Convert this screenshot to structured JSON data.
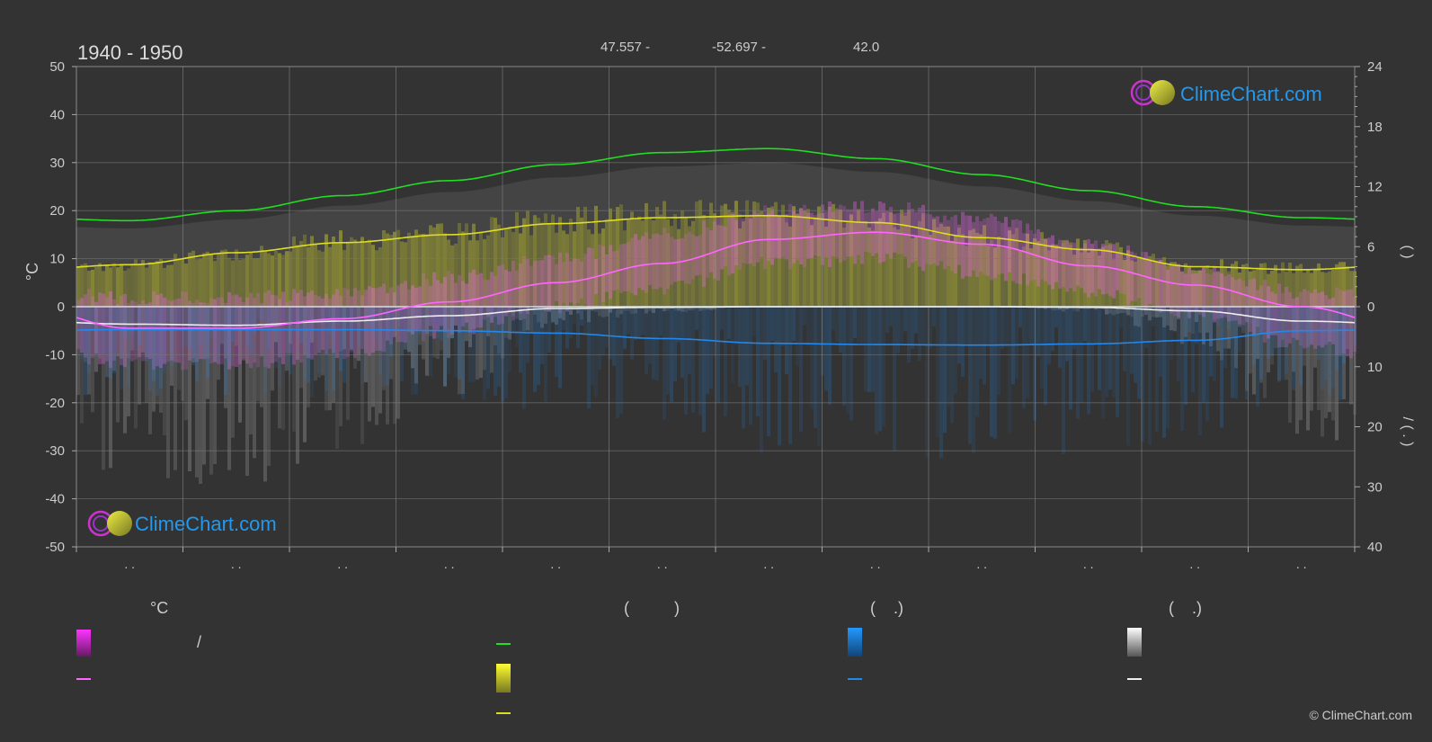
{
  "header": {
    "period": "1940 - 1950",
    "latitude_text": "47.557 -",
    "longitude_text": "-52.697 -",
    "elevation_text": "42.0"
  },
  "brand": {
    "name": "ClimeChart.com",
    "copyright": "© ClimeChart.com"
  },
  "colors": {
    "background": "#333333",
    "daylight": "#22dd22",
    "sunshine": "#dddd22",
    "temperature_mean": "#ff66ff",
    "precipitation": "#2288ee",
    "snow": "#eeeeee",
    "brand": "#2299ee"
  },
  "legend": {
    "temp_header": "°C",
    "sun_header": "(          )",
    "rain_header": "(    .)",
    "snow_header": "(    .)",
    "temp_range_label": "/"
  },
  "chart_data": {
    "type": "line",
    "x": [
      "Jan",
      "Feb",
      "Mar",
      "Apr",
      "May",
      "Jun",
      "Jul",
      "Aug",
      "Sep",
      "Oct",
      "Nov",
      "Dec"
    ],
    "x_tick_labels": [
      ". .",
      ". .",
      ". .",
      ". .",
      ". .",
      ". .",
      ". .",
      ". .",
      ". .",
      ". .",
      ". .",
      ". ."
    ],
    "y_left": {
      "label": "°C",
      "range": [
        -50,
        50
      ],
      "ticks": [
        50,
        40,
        30,
        20,
        10,
        0,
        -10,
        -20,
        -30,
        -40,
        -50
      ]
    },
    "y_right_upper": {
      "label": "(        )",
      "range": [
        0,
        24
      ],
      "ticks": [
        24,
        18,
        12,
        6,
        0
      ]
    },
    "y_right_lower": {
      "label": "/   (  .  )",
      "range": [
        0,
        40
      ],
      "ticks": [
        10,
        20,
        30,
        40
      ]
    },
    "grid": true,
    "series": [
      {
        "key": "daylight",
        "axis": "hours",
        "values": [
          8.6,
          9.6,
          11.1,
          12.6,
          14.2,
          15.4,
          15.8,
          14.8,
          13.2,
          11.6,
          10.0,
          8.9
        ]
      },
      {
        "key": "sunshine",
        "axis": "hours",
        "values": [
          4.2,
          5.4,
          6.4,
          7.2,
          8.3,
          8.9,
          9.1,
          8.4,
          6.9,
          5.7,
          4.0,
          3.7
        ]
      },
      {
        "key": "temp_mean",
        "axis": "temp",
        "values": [
          -4.5,
          -4.5,
          -2.5,
          1.0,
          5.0,
          9.0,
          14.0,
          15.5,
          13.0,
          8.5,
          4.5,
          0.0
        ]
      },
      {
        "key": "rain",
        "axis": "precip",
        "values": [
          3.8,
          3.8,
          3.8,
          4.0,
          4.4,
          5.3,
          6.1,
          6.3,
          6.4,
          6.2,
          5.6,
          4.0
        ]
      },
      {
        "key": "snow",
        "axis": "precip",
        "values": [
          2.9,
          3.1,
          2.4,
          1.5,
          0.3,
          0.1,
          0.0,
          0.0,
          0.0,
          0.1,
          0.7,
          2.4
        ]
      }
    ],
    "temp_band": {
      "max": [
        2,
        2,
        3,
        6,
        10,
        15,
        20,
        21,
        18,
        13,
        8,
        3
      ],
      "min": [
        -12,
        -12,
        -10,
        -5,
        0,
        4,
        9,
        10,
        7,
        3,
        -2,
        -8
      ]
    }
  }
}
